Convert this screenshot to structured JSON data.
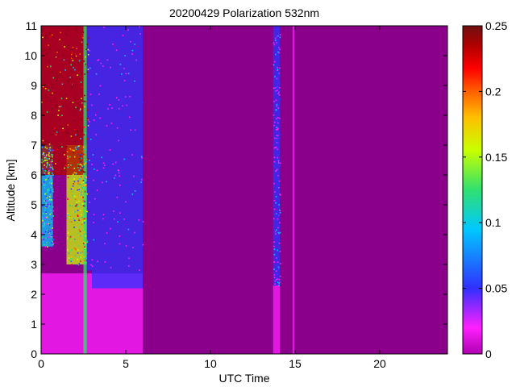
{
  "chart_data": {
    "type": "heatmap",
    "title": "20200429 Polarization 532nm",
    "xlabel": "UTC Time",
    "ylabel": "Altitude [km]",
    "xlim": [
      0,
      24
    ],
    "ylim": [
      0,
      11
    ],
    "x_ticks": [
      0,
      5,
      10,
      15,
      20
    ],
    "y_ticks": [
      0,
      1,
      2,
      3,
      4,
      5,
      6,
      7,
      8,
      9,
      10,
      11
    ],
    "colorbar": {
      "min": 0,
      "max": 0.25,
      "ticks": [
        "0",
        "0.05",
        "0.1",
        "0.15",
        "0.2",
        "0.25"
      ],
      "colormap": [
        "#b000b0",
        "#ff20ff",
        "#3030ff",
        "#00c8ff",
        "#30e070",
        "#c8ff00",
        "#ffc000",
        "#ff6000",
        "#ff0000",
        "#b00000",
        "#701010"
      ]
    },
    "background_value_color": "#8b008b",
    "features": [
      {
        "kind": "lower-layer",
        "x": [
          0,
          6
        ],
        "y": [
          0,
          2.7
        ],
        "value": 0.02
      },
      {
        "kind": "depolarizing-layer",
        "x": [
          0,
          0.7
        ],
        "y": [
          3.6,
          7
        ],
        "value": 0.08
      },
      {
        "kind": "depolarizing-layer",
        "x": [
          1.5,
          2.7
        ],
        "y": [
          3,
          7
        ],
        "value": 0.12
      },
      {
        "kind": "speckle-aloft",
        "x": [
          0,
          2.8
        ],
        "y": [
          6,
          11
        ],
        "value": 0.22
      },
      {
        "kind": "layer-top",
        "x": [
          3,
          6
        ],
        "y": [
          2.2,
          2.8
        ],
        "value": 0.06
      },
      {
        "kind": "vertical-streak",
        "x": [
          2.5,
          2.7
        ],
        "y": [
          0,
          11
        ],
        "value": 0.1
      },
      {
        "kind": "speckle-column",
        "x": [
          2.7,
          6
        ],
        "y": [
          2.8,
          11
        ],
        "value": 0.04
      },
      {
        "kind": "speckle-column",
        "x": [
          13.7,
          14.1
        ],
        "y": [
          2.3,
          11
        ],
        "value": 0.04
      },
      {
        "kind": "lower-layer",
        "x": [
          13.7,
          14.1
        ],
        "y": [
          0,
          2.3
        ],
        "value": 0.02
      },
      {
        "kind": "thin-column",
        "x": [
          14.85,
          14.95
        ],
        "y": [
          0,
          11
        ],
        "value": 0.02
      }
    ]
  }
}
